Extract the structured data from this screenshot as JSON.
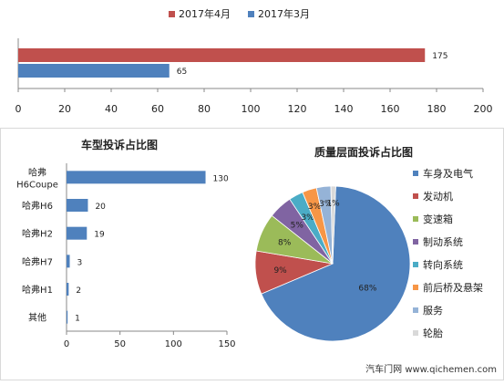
{
  "chart_data": [
    {
      "type": "bar",
      "orientation": "horizontal",
      "series": [
        {
          "name": "2017年4月",
          "values": [
            175
          ],
          "color": "#c0504d"
        },
        {
          "name": "2017年3月",
          "values": [
            65
          ],
          "color": "#4f81bd"
        }
      ],
      "xlim": [
        0,
        200
      ],
      "xticks": [
        "0",
        "20",
        "40",
        "60",
        "80",
        "100",
        "120",
        "140",
        "160",
        "180",
        "200"
      ],
      "legend_position": "top",
      "grid": false
    },
    {
      "type": "bar",
      "orientation": "horizontal",
      "title": "车型投诉占比图",
      "categories": [
        "哈弗 H6Coupe",
        "哈弗H6",
        "哈弗H2",
        "哈弗H7",
        "哈弗H1",
        "其他"
      ],
      "values": [
        130,
        20,
        19,
        3,
        2,
        1
      ],
      "color": "#4f81bd",
      "xlim": [
        0,
        150
      ],
      "xticks": [
        "0",
        "50",
        "100",
        "150"
      ],
      "grid": false
    },
    {
      "type": "pie",
      "title": "质量层面投诉占比图",
      "labels": [
        "车身及电气",
        "发动机",
        "变速箱",
        "制动系统",
        "转向系统",
        "前后桥及悬架",
        "服务",
        "轮胎"
      ],
      "values": [
        68,
        9,
        8,
        5,
        3,
        3,
        3,
        1
      ],
      "data_labels": [
        "68%",
        "9%",
        "8%",
        "5%",
        "3%",
        "3%",
        "3%",
        "1%"
      ],
      "colors": [
        "#4f81bd",
        "#c0504d",
        "#9bbb59",
        "#8064a2",
        "#4bacc6",
        "#f79646",
        "#95b3d7",
        "#d9d9d9"
      ],
      "legend_position": "right"
    }
  ],
  "footer": "汽车门网 www.qichemen.com"
}
